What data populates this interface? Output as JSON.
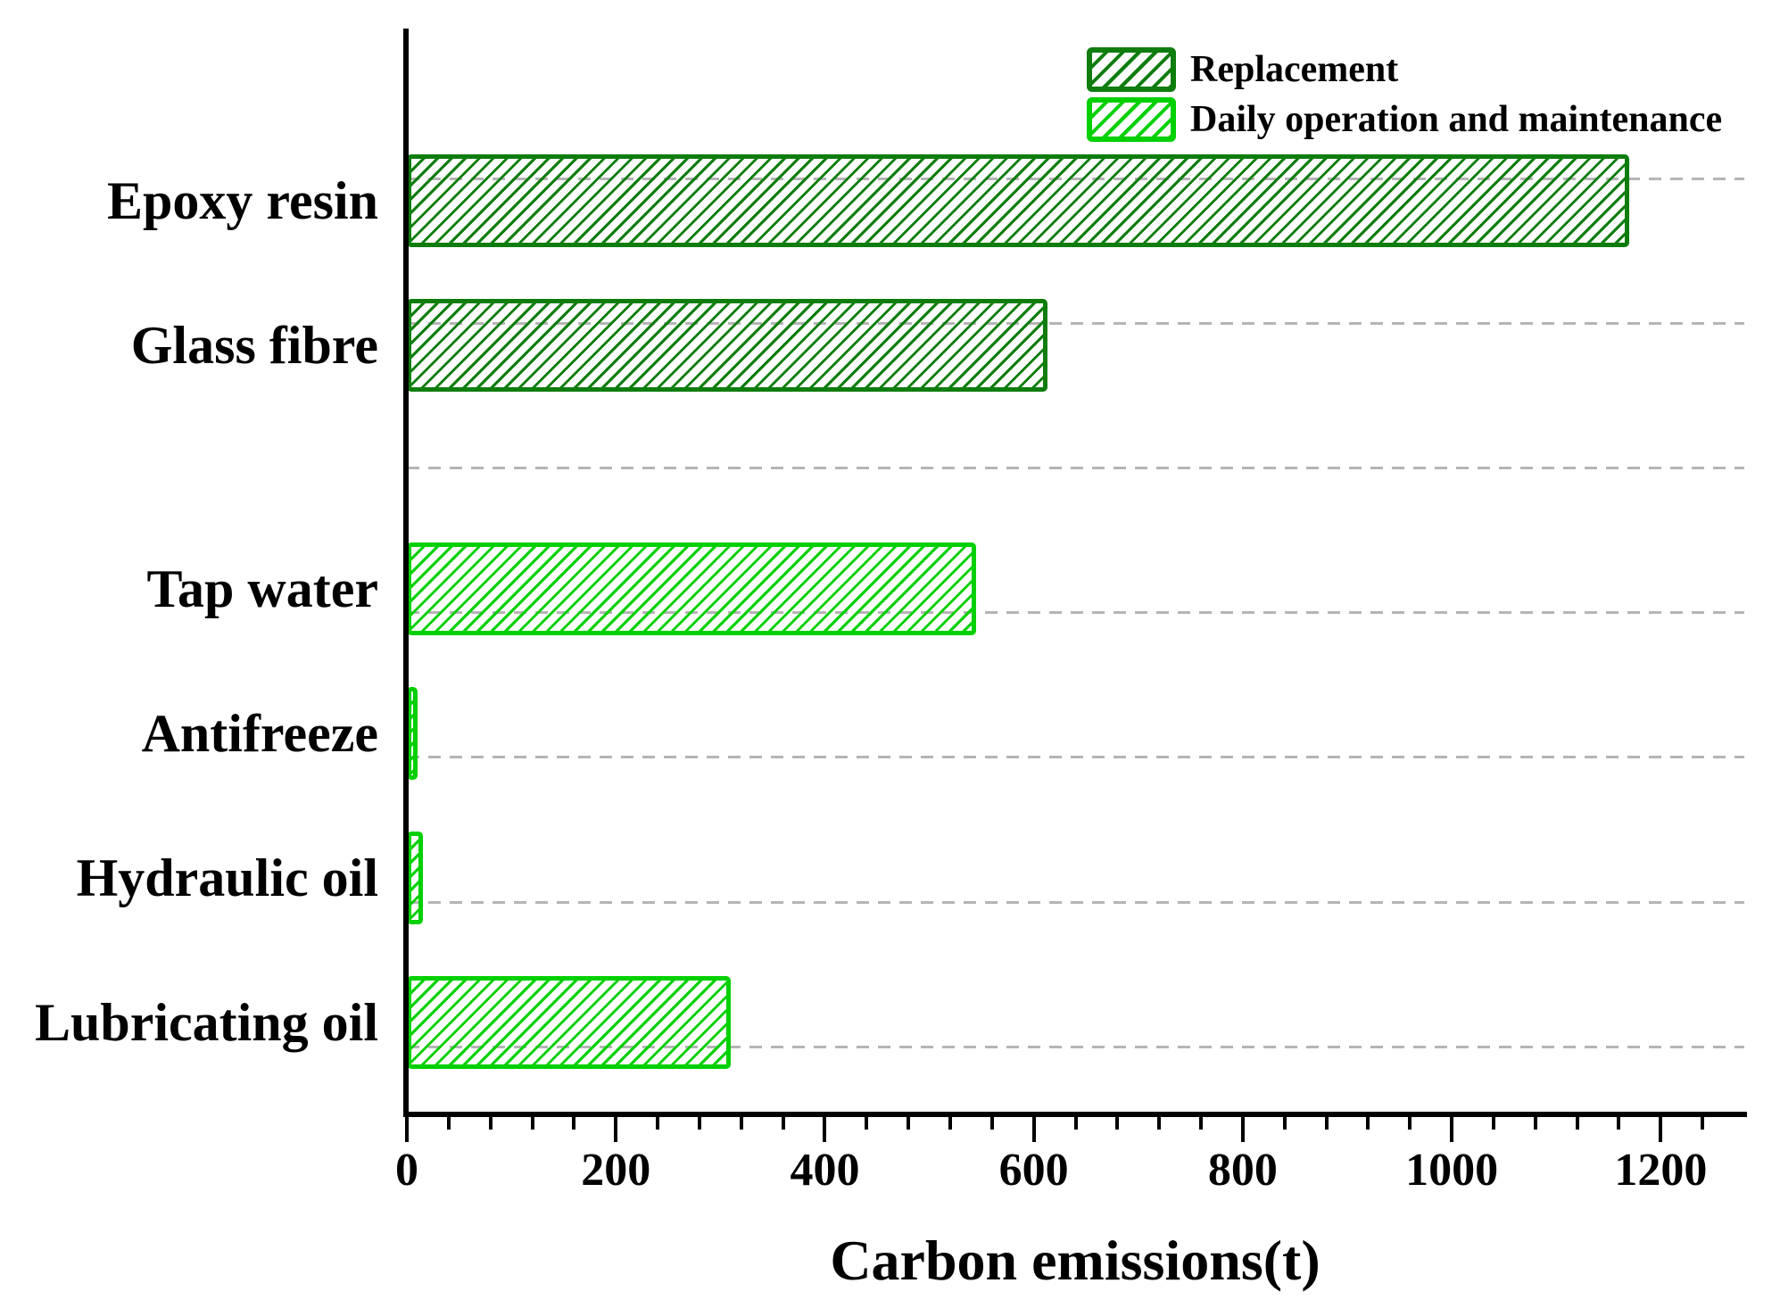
{
  "chart_data": {
    "type": "bar",
    "orientation": "horizontal",
    "title": "",
    "xlabel": "Carbon emissions(t)",
    "ylabel": "",
    "xlim": [
      0,
      1280
    ],
    "xticks": [
      0,
      200,
      400,
      600,
      800,
      1000,
      1200
    ],
    "minor_tick_step": 40,
    "grid": "dashed-horizontal-per-category",
    "gridline_color": "#b5b5b5",
    "legend_position": "top-right",
    "categories": [
      "Epoxy resin",
      "Glass fibre",
      "",
      "Tap water",
      "Antifreeze",
      "Hydraulic oil",
      "Lubricating oil"
    ],
    "series": [
      {
        "name": "Replacement",
        "color": "#0e7d0e",
        "values": [
          1170,
          613,
          0,
          0,
          0,
          0,
          0
        ]
      },
      {
        "name": "Daily operation and maintenance",
        "color": "#00d000",
        "values": [
          0,
          0,
          0,
          545,
          10,
          15,
          310
        ]
      }
    ]
  }
}
